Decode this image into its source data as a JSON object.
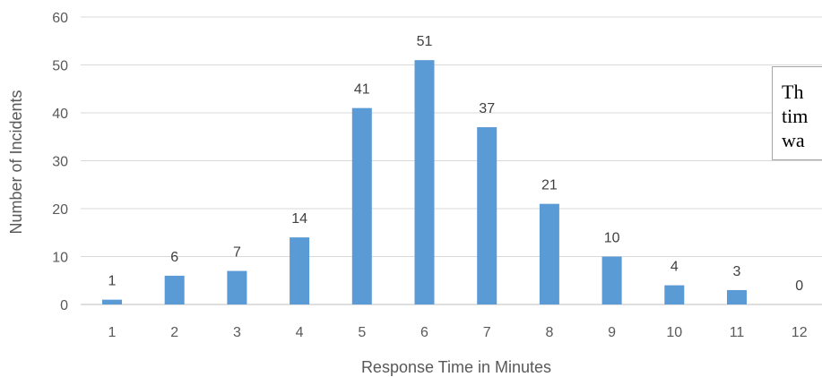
{
  "chart_data": {
    "type": "bar",
    "categories": [
      "1",
      "2",
      "3",
      "4",
      "5",
      "6",
      "7",
      "8",
      "9",
      "10",
      "11",
      "12"
    ],
    "values": [
      1,
      6,
      7,
      14,
      41,
      51,
      37,
      21,
      10,
      4,
      3,
      0
    ],
    "data_labels": [
      "1",
      "6",
      "7",
      "14",
      "41",
      "51",
      "37",
      "21",
      "10",
      "4",
      "3",
      "0"
    ],
    "xlabel": "Response Time in Minutes",
    "ylabel": "Number of Incidents",
    "ylim": [
      0,
      60
    ],
    "yticks": [
      "0",
      "10",
      "20",
      "30",
      "40",
      "50",
      "60"
    ],
    "grid": true,
    "legend": "none",
    "bar_color": "#5b9bd5"
  },
  "annotation": {
    "lines": [
      "Th",
      "tim",
      "wa"
    ]
  }
}
